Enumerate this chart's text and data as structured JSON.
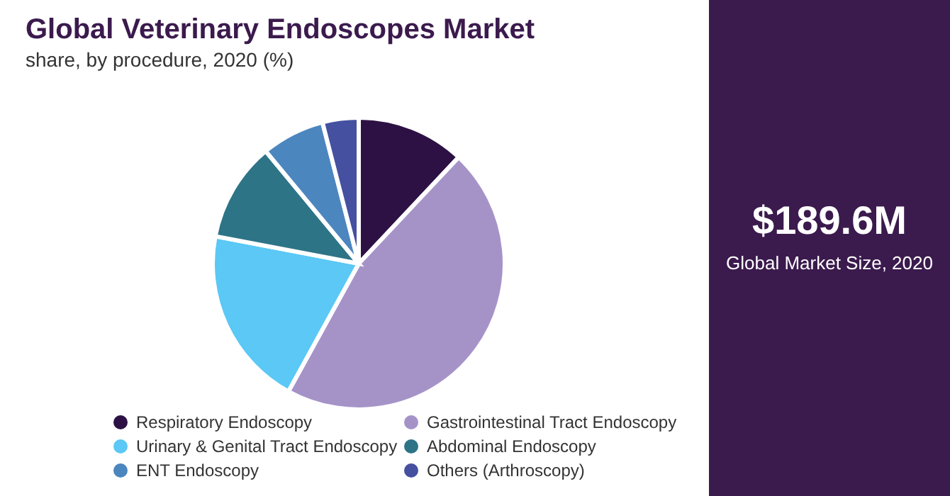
{
  "chart_data": {
    "type": "pie",
    "title": "Global Veterinary Endoscopes Market",
    "subtitle": "share, by procedure, 2020 (%)",
    "categories": [
      "Respiratory Endoscopy",
      "Gastrointestinal Tract Endoscopy",
      "Urinary & Genital Tract Endoscopy",
      "Abdominal Endoscopy",
      "ENT Endoscopy",
      "Others (Arthroscopy)"
    ],
    "values": [
      12,
      46,
      20,
      11,
      7,
      4
    ],
    "colors": [
      "#2d1144",
      "#a593c8",
      "#5bc8f5",
      "#2e7487",
      "#4c86bf",
      "#4550a0"
    ],
    "legend": "bottom",
    "annotations": [
      "$189.6M",
      "Global Market Size, 2020"
    ]
  }
}
